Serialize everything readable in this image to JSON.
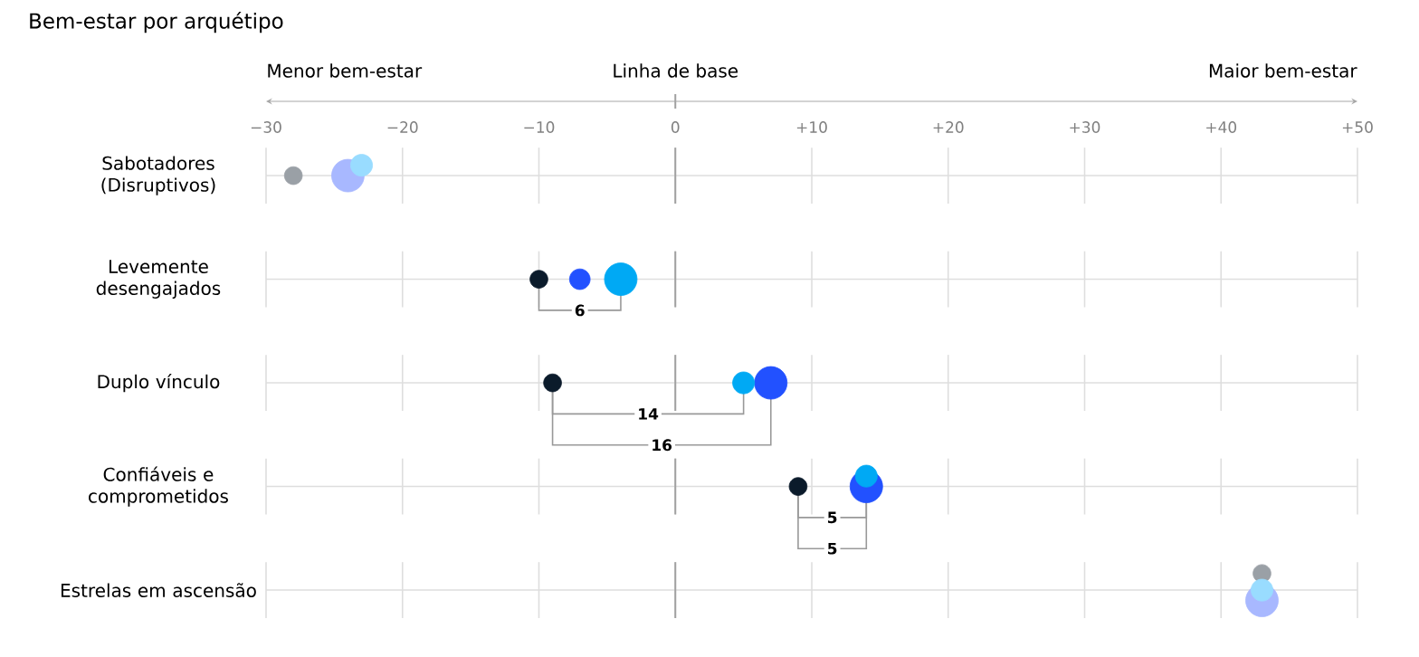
{
  "chart_data": {
    "type": "bubble",
    "title": "Bem-estar por arquétipo",
    "categories": [
      "Sabotadores (Disruptivos)",
      "Levemente desengajados",
      "Duplo vínculo",
      "Confiáveis e comprometidos",
      "Estrelas em ascensão"
    ],
    "series": [
      {
        "colors": [
          "#9aa0a6",
          "#0b1b2b",
          "#0b1b2b",
          "#0b1b2b",
          "#9aa0a6"
        ],
        "values": [
          -28,
          -10,
          -9,
          9,
          43
        ],
        "sizes": [
          0.3,
          0.3,
          0.3,
          0.3,
          0.3
        ]
      },
      {
        "colors": [
          "#a8b8ff",
          "#2251ff",
          "#2251ff",
          "#2251ff",
          "#a8b8ff"
        ],
        "values": [
          -24,
          -7,
          7,
          14,
          43
        ],
        "sizes": [
          1,
          0.4,
          1,
          1,
          1
        ]
      },
      {
        "colors": [
          "#99dcff",
          "#00a9f4",
          "#00a9f4",
          "#00a9f4",
          "#99dcff"
        ],
        "values": [
          -23,
          -4,
          5,
          14,
          43
        ],
        "sizes": [
          0.45,
          1,
          0.45,
          0.45,
          0.45
        ]
      }
    ],
    "xlim": [
      -30,
      50
    ],
    "xticks": [
      {
        "value": -30,
        "label": "−30"
      },
      {
        "value": -20,
        "label": "−20"
      },
      {
        "value": -10,
        "label": "−10"
      },
      {
        "value": 0,
        "label": "0"
      },
      {
        "value": 10,
        "label": "+10"
      },
      {
        "value": 20,
        "label": "+20"
      },
      {
        "value": 30,
        "label": "+30"
      },
      {
        "value": 40,
        "label": "+40"
      },
      {
        "value": 50,
        "label": "+50"
      }
    ],
    "grid": true,
    "orientation": "horizontal",
    "ref_lines": [
      {
        "axis": "x",
        "value": 0,
        "color": "#a0a0a0"
      }
    ],
    "annotations": [
      "Menor bem-estar",
      "Linha de base",
      "Maior bem-estar",
      "6",
      "14",
      "16",
      "5",
      "5"
    ]
  }
}
